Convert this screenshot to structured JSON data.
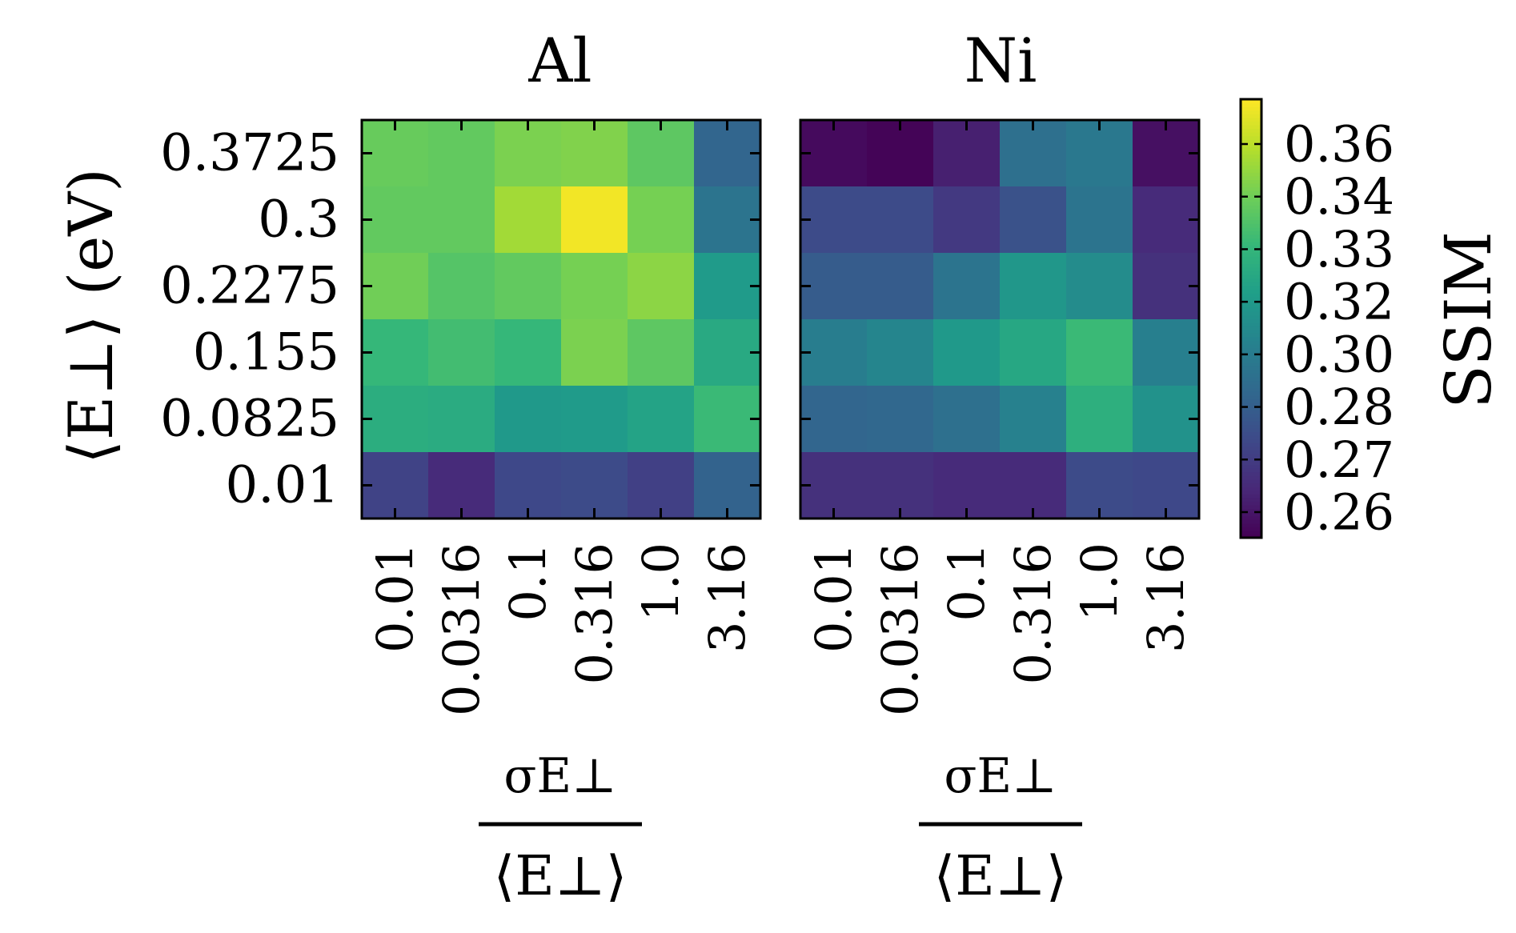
{
  "chart_data": {
    "type": "heatmap",
    "y_axis": {
      "label": "⟨E⊥⟩ (eV)",
      "tick_labels": [
        "0.3725",
        "0.3",
        "0.2275",
        "0.155",
        "0.0825",
        "0.01"
      ]
    },
    "x_axis": {
      "label_numerator": "σE⊥",
      "label_denominator": "⟨E⊥⟩",
      "tick_labels": [
        "0.01",
        "0.0316",
        "0.1",
        "0.316",
        "1.0",
        "3.16"
      ]
    },
    "panels": [
      {
        "title": "Al",
        "values": [
          [
            0.341,
            0.34,
            0.345,
            0.346,
            0.339,
            0.291
          ],
          [
            0.34,
            0.34,
            0.352,
            0.366,
            0.344,
            0.298
          ],
          [
            0.343,
            0.337,
            0.34,
            0.344,
            0.348,
            0.316
          ],
          [
            0.33,
            0.333,
            0.33,
            0.345,
            0.339,
            0.323
          ],
          [
            0.325,
            0.324,
            0.315,
            0.316,
            0.32,
            0.331
          ],
          [
            0.277,
            0.268,
            0.279,
            0.28,
            0.276,
            0.29
          ]
        ]
      },
      {
        "title": "Ni",
        "values": [
          [
            0.257,
            0.255,
            0.264,
            0.296,
            0.3,
            0.259
          ],
          [
            0.28,
            0.28,
            0.273,
            0.283,
            0.298,
            0.268
          ],
          [
            0.287,
            0.287,
            0.298,
            0.314,
            0.309,
            0.27
          ],
          [
            0.302,
            0.306,
            0.315,
            0.322,
            0.331,
            0.303
          ],
          [
            0.291,
            0.292,
            0.296,
            0.304,
            0.326,
            0.312
          ],
          [
            0.27,
            0.27,
            0.268,
            0.268,
            0.28,
            0.279
          ]
        ]
      }
    ],
    "colorbar": {
      "label": "SSIM",
      "tick_labels": [
        "0.36",
        "0.34",
        "0.33",
        "0.32",
        "0.30",
        "0.28",
        "0.27",
        "0.26"
      ],
      "range": [
        0.254,
        0.368
      ],
      "colormap": "viridis",
      "colormap_stops": [
        "#440154",
        "#482878",
        "#3e4989",
        "#31688e",
        "#26828e",
        "#1f9e89",
        "#35b779",
        "#6ece58",
        "#b5de2b",
        "#fde725"
      ]
    }
  }
}
